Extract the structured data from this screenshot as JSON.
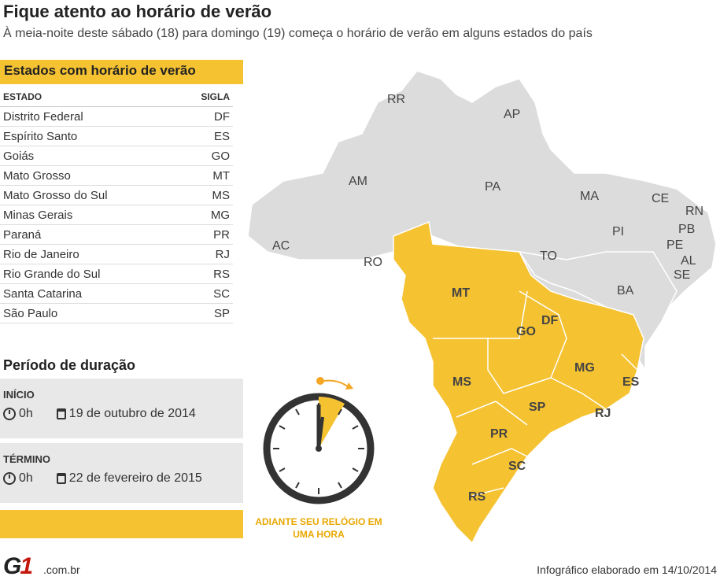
{
  "header": {
    "title": "Fique atento ao horário de verão",
    "subtitle": "À meia-noite deste sábado (18) para domingo (19) começa o horário de verão em alguns estados do país"
  },
  "states_table": {
    "title": "Estados com horário de verão",
    "col_state": "ESTADO",
    "col_code": "SIGLA",
    "rows": [
      {
        "state": "Distrito Federal",
        "code": "DF"
      },
      {
        "state": "Espírito Santo",
        "code": "ES"
      },
      {
        "state": "Goiás",
        "code": "GO"
      },
      {
        "state": "Mato Grosso",
        "code": "MT"
      },
      {
        "state": "Mato Grosso do Sul",
        "code": "MS"
      },
      {
        "state": "Minas Gerais",
        "code": "MG"
      },
      {
        "state": "Paraná",
        "code": "PR"
      },
      {
        "state": "Rio de Janeiro",
        "code": "RJ"
      },
      {
        "state": "Rio Grande do Sul",
        "code": "RS"
      },
      {
        "state": "Santa Catarina",
        "code": "SC"
      },
      {
        "state": "São Paulo",
        "code": "SP"
      }
    ]
  },
  "period": {
    "title": "Período de duração",
    "start_label": "INÍCIO",
    "start_time": "0h",
    "start_date": "19 de outubro de 2014",
    "end_label": "TÉRMINO",
    "end_time": "0h",
    "end_date": "22 de fevereiro de 2015"
  },
  "clock_caption": "ADIANTE SEU RELÓGIO EM UMA HORA",
  "map": {
    "highlight_color": "#f5c231",
    "base_color": "#dcdcdc",
    "labels": {
      "RR": "RR",
      "AP": "AP",
      "AM": "AM",
      "PA": "PA",
      "MA": "MA",
      "CE": "CE",
      "RN": "RN",
      "PB": "PB",
      "PE": "PE",
      "AL": "AL",
      "SE": "SE",
      "PI": "PI",
      "AC": "AC",
      "RO": "RO",
      "TO": "TO",
      "BA": "BA",
      "MT": "MT",
      "GO": "GO",
      "DF": "DF",
      "MG": "MG",
      "ES": "ES",
      "MS": "MS",
      "SP": "SP",
      "RJ": "RJ",
      "PR": "PR",
      "SC": "SC",
      "RS": "RS"
    }
  },
  "footer": {
    "logo_g": "G",
    "logo_1": "1",
    "domain": ".com.br",
    "credit": "Infográfico elaborado em 14/10/2014"
  }
}
